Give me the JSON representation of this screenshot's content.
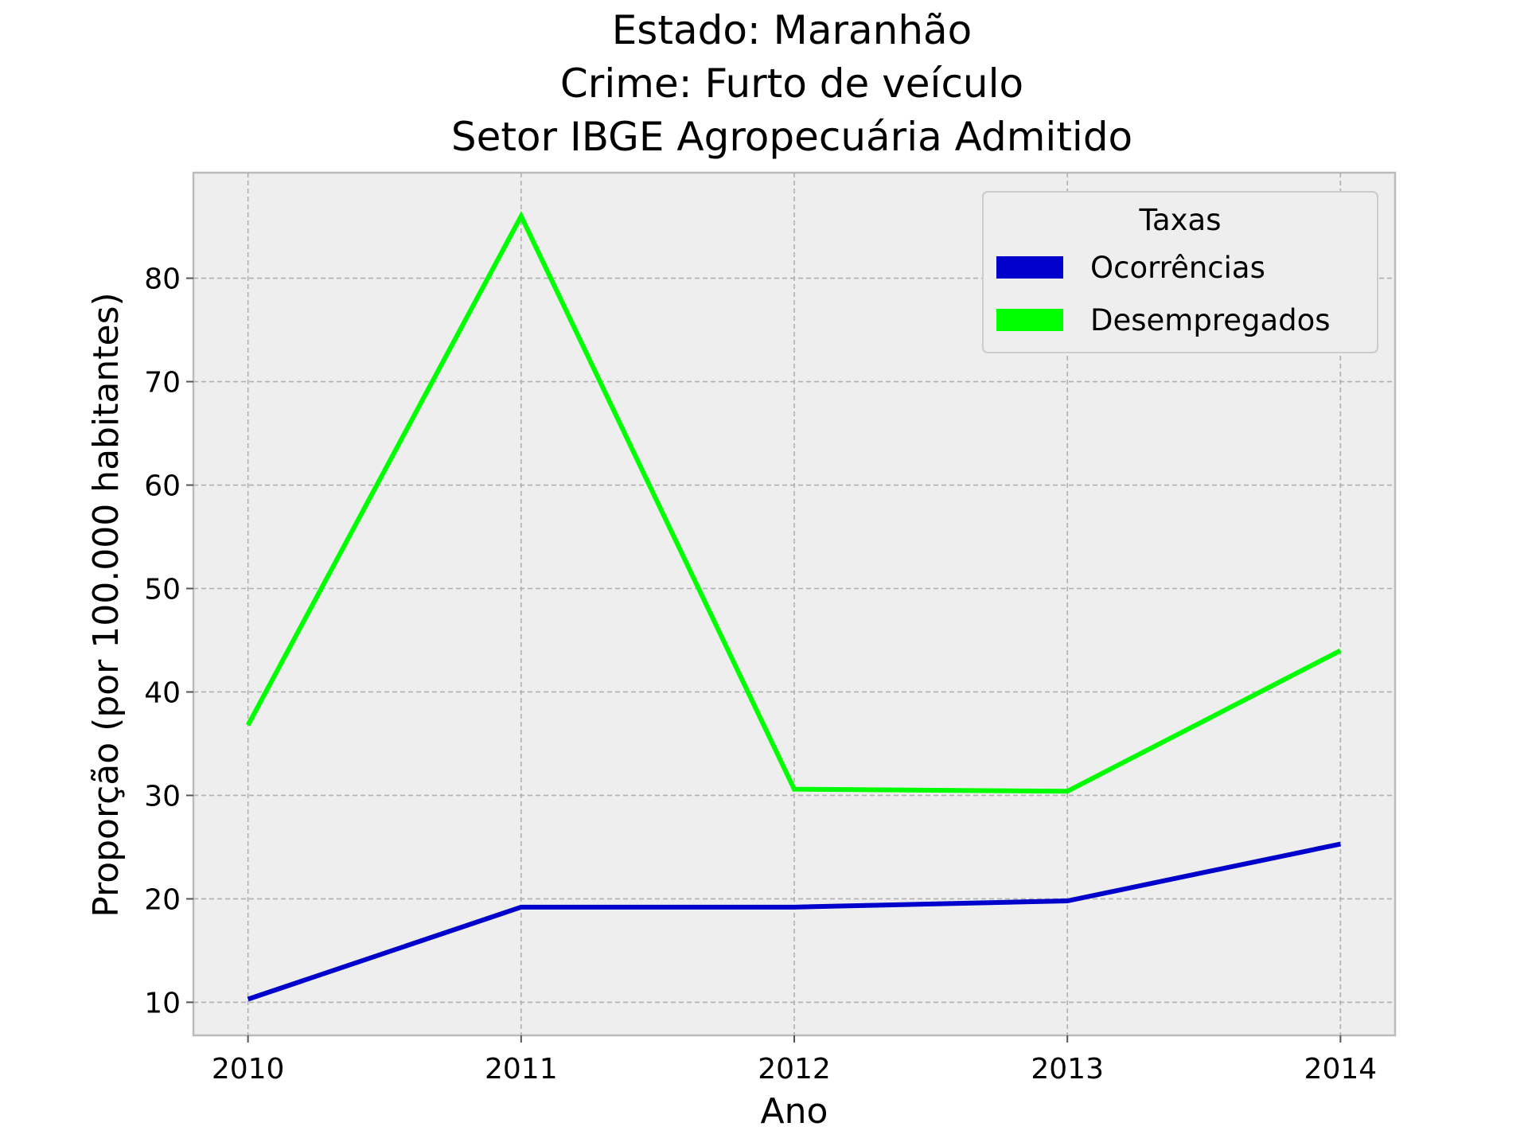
{
  "chart_data": {
    "type": "line",
    "title_lines": [
      "Estado: Maranhão",
      "Crime: Furto de veículo",
      "Setor IBGE  Agropecuária   Admitido"
    ],
    "xlabel": "Ano",
    "ylabel": "Proporção (por 100.000 habitantes)",
    "x": [
      2010,
      2011,
      2012,
      2013,
      2014
    ],
    "x_tick_labels": [
      "2010",
      "2011",
      "2012",
      "2013",
      "2014"
    ],
    "y_ticks": [
      10,
      20,
      30,
      40,
      50,
      60,
      70,
      80
    ],
    "y_tick_labels": [
      "10",
      "20",
      "30",
      "40",
      "50",
      "60",
      "70",
      "80"
    ],
    "xlim": [
      2009.8,
      2014.2
    ],
    "ylim": [
      6.8,
      90.2
    ],
    "grid": true,
    "legend": {
      "title": "Taxas",
      "placement": "top-right"
    },
    "series": [
      {
        "name": "Ocorrências",
        "color": "#0000cc",
        "values": [
          10.3,
          19.2,
          19.2,
          19.8,
          25.3
        ]
      },
      {
        "name": "Desempregados",
        "color": "#00ff00",
        "values": [
          36.8,
          86.0,
          30.6,
          30.4,
          44.0
        ]
      }
    ]
  }
}
